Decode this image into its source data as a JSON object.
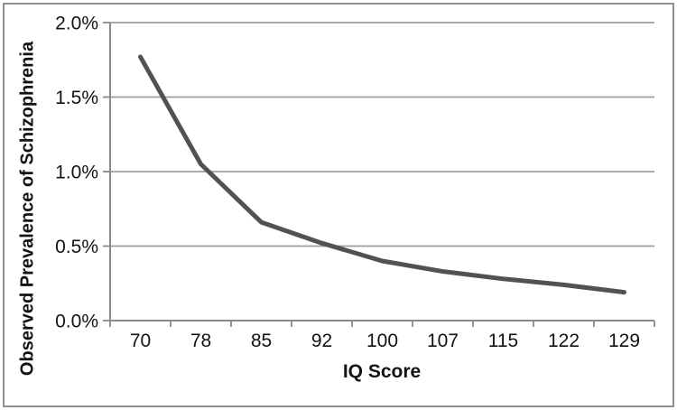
{
  "figure": {
    "background_color": "#ffffff",
    "border_color": "#909090"
  },
  "chart_data": {
    "type": "line",
    "title": "",
    "xlabel": "IQ Score",
    "ylabel": "Observed Prevalence of Schizophrenia",
    "categories": [
      "70",
      "78",
      "85",
      "92",
      "100",
      "107",
      "115",
      "122",
      "129"
    ],
    "values": [
      1.77,
      1.05,
      0.66,
      0.52,
      0.4,
      0.33,
      0.28,
      0.24,
      0.19
    ],
    "ylim": [
      0,
      2.0
    ],
    "y_ticks": [
      0,
      0.5,
      1.0,
      1.5,
      2.0
    ],
    "y_tick_labels": [
      "0.0%",
      "0.5%",
      "1.0%",
      "1.5%",
      "2.0%"
    ],
    "grid": "horizontal",
    "legend": "none",
    "line_color": "#525252",
    "gridline_color": "#9e9e9e",
    "axis_color": "#8a8a8a",
    "text_color": "#131313"
  }
}
